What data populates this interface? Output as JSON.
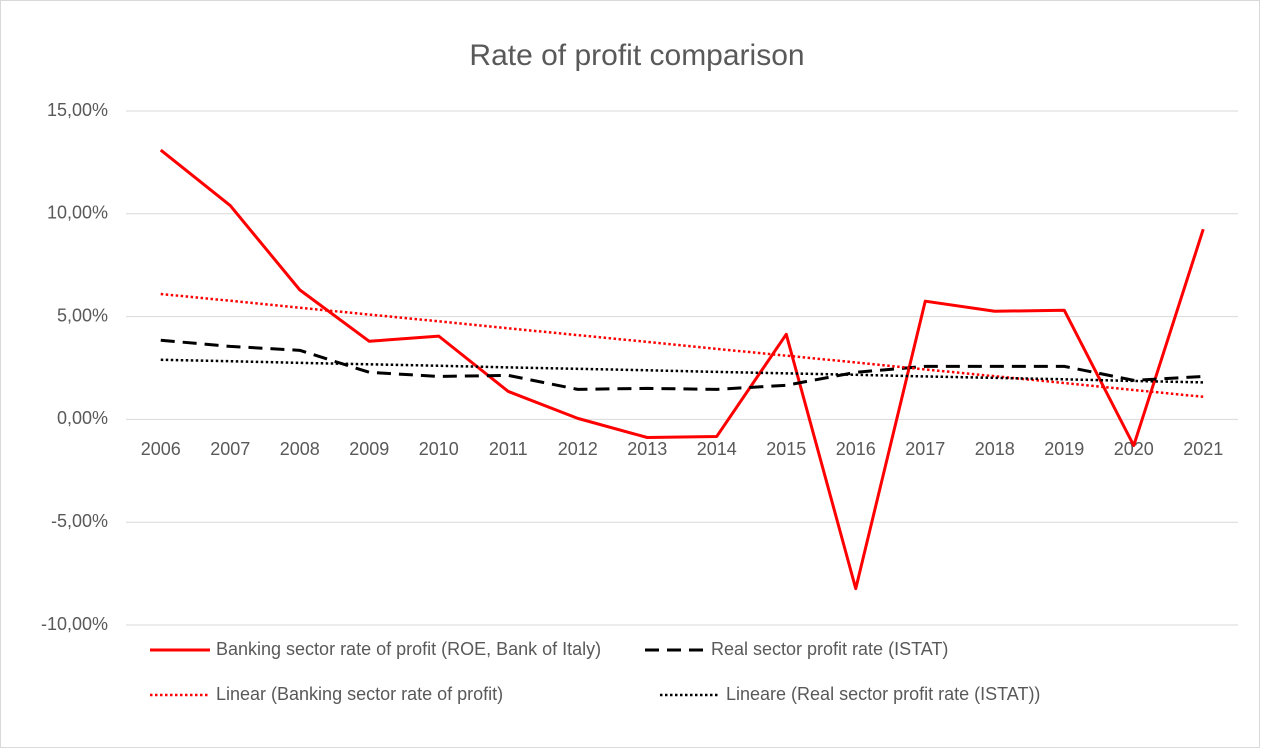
{
  "chart_data": {
    "type": "line",
    "title": "Rate of profit comparison",
    "categories": [
      "2006",
      "2007",
      "2008",
      "2009",
      "2010",
      "2011",
      "2012",
      "2013",
      "2014",
      "2015",
      "2016",
      "2017",
      "2018",
      "2019",
      "2020",
      "2021"
    ],
    "series": [
      {
        "name": "Banking sector rate of profit (ROE, Bank of Italy)",
        "color": "#ff0000",
        "style": "solid",
        "values": [
          13.1,
          10.4,
          6.3,
          3.8,
          4.05,
          1.36,
          0.05,
          -0.88,
          -0.83,
          4.14,
          -8.23,
          5.75,
          5.26,
          5.31,
          -1.27,
          9.25
        ]
      },
      {
        "name": "Real sector profit rate (ISTAT)",
        "color": "#000000",
        "style": "dashed",
        "values": [
          3.85,
          3.55,
          3.36,
          2.29,
          2.09,
          2.14,
          1.46,
          1.51,
          1.46,
          1.66,
          2.29,
          2.58,
          2.58,
          2.58,
          1.9,
          2.09
        ]
      },
      {
        "name": "Linear (Banking sector rate of profit)",
        "color": "#ff0000",
        "style": "dotted",
        "values": [
          6.1,
          5.77,
          5.43,
          5.1,
          4.77,
          4.43,
          4.1,
          3.77,
          3.43,
          3.1,
          2.77,
          2.43,
          2.1,
          1.77,
          1.43,
          1.1
        ]
      },
      {
        "name": "Lineare (Real sector profit rate (ISTAT))",
        "color": "#000000",
        "style": "dotted",
        "values": [
          2.9,
          2.83,
          2.75,
          2.68,
          2.61,
          2.53,
          2.46,
          2.39,
          2.31,
          2.24,
          2.17,
          2.09,
          2.02,
          1.95,
          1.87,
          1.8
        ]
      }
    ],
    "ylim": [
      -10,
      15
    ],
    "yticks": [
      {
        "value": -10,
        "label": "-10,00%"
      },
      {
        "value": -5,
        "label": "-5,00%"
      },
      {
        "value": 0,
        "label": "0,00%"
      },
      {
        "value": 5,
        "label": "5,00%"
      },
      {
        "value": 10,
        "label": "10,00%"
      },
      {
        "value": 15,
        "label": "15,00%"
      }
    ],
    "grid": true,
    "legend": "bottom"
  }
}
